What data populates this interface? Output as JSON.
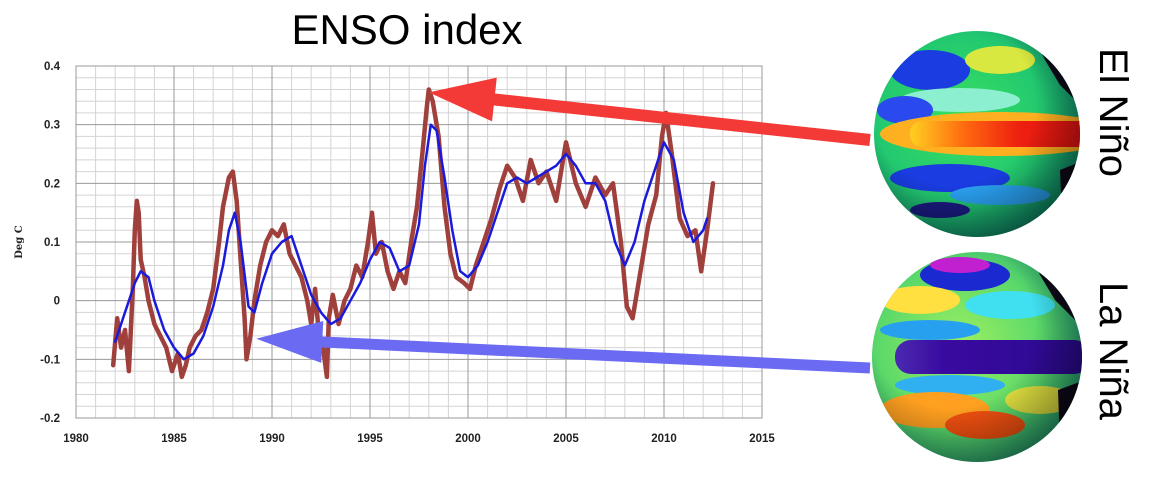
{
  "chart_data": {
    "type": "line",
    "title": "ENSO index",
    "ylabel": "Deg C",
    "xlabel": "",
    "xlim": [
      1980,
      2015
    ],
    "ylim": [
      -0.2,
      0.4
    ],
    "x_ticks": [
      1980,
      1985,
      1990,
      1995,
      2000,
      2005,
      2010,
      2015
    ],
    "y_ticks": [
      -0.2,
      -0.1,
      0,
      0.1,
      0.2,
      0.3,
      0.4
    ],
    "y_tick_labels": [
      "-0.2",
      "-0.1",
      "0",
      "0.1",
      "0.2",
      "0.3",
      "0.4"
    ],
    "grid": true,
    "series": [
      {
        "name": "",
        "role": "monthly",
        "color": "#a0403c",
        "x": [
          1981.9,
          1982.1,
          1982.3,
          1982.5,
          1982.7,
          1982.9,
          1983.0,
          1983.1,
          1983.2,
          1983.3,
          1983.5,
          1983.7,
          1984.0,
          1984.3,
          1984.6,
          1984.9,
          1985.2,
          1985.4,
          1985.6,
          1985.8,
          1986.1,
          1986.4,
          1986.7,
          1987.0,
          1987.3,
          1987.5,
          1987.8,
          1988.0,
          1988.2,
          1988.4,
          1988.6,
          1988.7,
          1988.9,
          1989.1,
          1989.4,
          1989.7,
          1990.0,
          1990.3,
          1990.6,
          1990.9,
          1991.2,
          1991.5,
          1991.8,
          1992.0,
          1992.2,
          1992.4,
          1992.6,
          1992.8,
          1992.9,
          1993.1,
          1993.4,
          1993.7,
          1994.0,
          1994.3,
          1994.6,
          1994.9,
          1995.1,
          1995.3,
          1995.6,
          1995.9,
          1996.2,
          1996.5,
          1996.8,
          1997.1,
          1997.4,
          1997.7,
          1997.9,
          1998.0,
          1998.2,
          1998.5,
          1998.8,
          1999.1,
          1999.4,
          1999.8,
          2000.1,
          2000.4,
          2000.8,
          2001.2,
          2001.6,
          2002.0,
          2002.4,
          2002.8,
          2003.2,
          2003.6,
          2004.0,
          2004.5,
          2005.0,
          2005.5,
          2006.0,
          2006.5,
          2007.0,
          2007.4,
          2007.8,
          2008.1,
          2008.4,
          2008.8,
          2009.2,
          2009.6,
          2009.9,
          2010.1,
          2010.4,
          2010.8,
          2011.2,
          2011.6,
          2011.9,
          2012.2,
          2012.5
        ],
        "y": [
          -0.11,
          -0.03,
          -0.08,
          -0.05,
          -0.12,
          0.02,
          0.12,
          0.17,
          0.15,
          0.07,
          0.04,
          0.0,
          -0.04,
          -0.06,
          -0.08,
          -0.12,
          -0.09,
          -0.13,
          -0.11,
          -0.08,
          -0.06,
          -0.05,
          -0.02,
          0.02,
          0.1,
          0.16,
          0.21,
          0.22,
          0.17,
          0.07,
          -0.03,
          -0.1,
          -0.06,
          0.0,
          0.06,
          0.1,
          0.12,
          0.11,
          0.13,
          0.08,
          0.06,
          0.04,
          0.0,
          -0.04,
          0.02,
          -0.06,
          -0.08,
          -0.13,
          -0.03,
          0.01,
          -0.04,
          0.0,
          0.02,
          0.06,
          0.04,
          0.1,
          0.15,
          0.08,
          0.1,
          0.05,
          0.02,
          0.05,
          0.03,
          0.1,
          0.16,
          0.26,
          0.33,
          0.36,
          0.34,
          0.28,
          0.16,
          0.08,
          0.04,
          0.03,
          0.02,
          0.06,
          0.1,
          0.14,
          0.19,
          0.23,
          0.21,
          0.17,
          0.24,
          0.2,
          0.22,
          0.17,
          0.27,
          0.2,
          0.16,
          0.21,
          0.18,
          0.2,
          0.1,
          -0.01,
          -0.03,
          0.05,
          0.13,
          0.18,
          0.28,
          0.32,
          0.25,
          0.14,
          0.11,
          0.12,
          0.05,
          0.12,
          0.2
        ]
      },
      {
        "name": "",
        "role": "smoothed",
        "color": "#1a1adc",
        "x": [
          1982.0,
          1982.5,
          1983.0,
          1983.3,
          1983.7,
          1984.0,
          1984.5,
          1985.0,
          1985.5,
          1986.0,
          1986.5,
          1987.0,
          1987.5,
          1987.8,
          1988.1,
          1988.4,
          1988.8,
          1989.1,
          1989.5,
          1990.0,
          1990.5,
          1991.0,
          1991.5,
          1992.0,
          1992.5,
          1993.0,
          1993.5,
          1994.0,
          1994.5,
          1995.0,
          1995.5,
          1996.0,
          1996.5,
          1997.0,
          1997.5,
          1997.8,
          1998.1,
          1998.4,
          1998.8,
          1999.2,
          1999.6,
          2000.0,
          2000.5,
          2001.0,
          2001.5,
          2002.0,
          2002.5,
          2003.0,
          2003.5,
          2004.0,
          2004.5,
          2005.0,
          2005.5,
          2006.0,
          2006.5,
          2007.0,
          2007.5,
          2008.0,
          2008.5,
          2009.0,
          2009.5,
          2010.0,
          2010.5,
          2011.0,
          2011.5,
          2012.0,
          2012.2
        ],
        "y": [
          -0.07,
          -0.02,
          0.03,
          0.05,
          0.04,
          0.0,
          -0.05,
          -0.08,
          -0.1,
          -0.09,
          -0.06,
          -0.01,
          0.06,
          0.12,
          0.15,
          0.1,
          -0.01,
          -0.02,
          0.03,
          0.08,
          0.1,
          0.11,
          0.06,
          0.01,
          -0.02,
          -0.04,
          -0.03,
          0.0,
          0.03,
          0.07,
          0.1,
          0.09,
          0.05,
          0.06,
          0.13,
          0.23,
          0.3,
          0.29,
          0.21,
          0.12,
          0.05,
          0.04,
          0.06,
          0.1,
          0.15,
          0.2,
          0.21,
          0.2,
          0.21,
          0.22,
          0.23,
          0.25,
          0.23,
          0.2,
          0.2,
          0.17,
          0.1,
          0.06,
          0.1,
          0.17,
          0.22,
          0.27,
          0.24,
          0.15,
          0.1,
          0.12,
          0.14
        ]
      }
    ]
  },
  "annotations": {
    "el_nino": {
      "label": "El Niño",
      "arrow_color": "#f43a36",
      "target": {
        "x": 1998.0,
        "y": 0.355
      }
    },
    "la_nina": {
      "label": "La Niña",
      "arrow_color": "#6a6af2",
      "target": {
        "x": 1989.2,
        "y": -0.065
      }
    }
  }
}
